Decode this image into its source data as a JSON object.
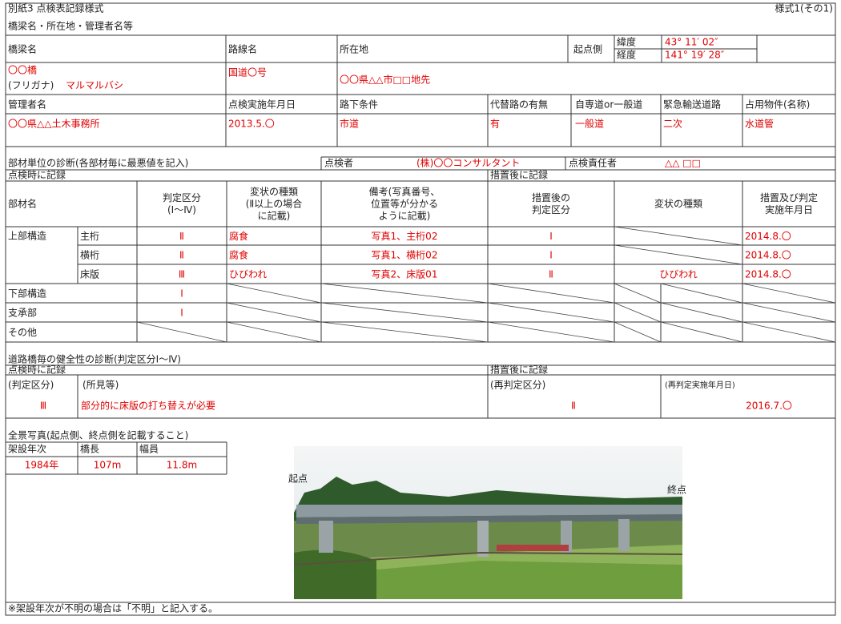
{
  "header": {
    "form_title": "別紙3 点検表記録様式",
    "form_number": "様式1(その1)"
  },
  "bridge_info": {
    "heading": "橋梁名・所在地・管理者名等",
    "labels": {
      "bridge_name": "橋梁名",
      "route": "路線名",
      "location": "所在地",
      "start_side": "起点側",
      "latitude": "緯度",
      "longitude": "経度",
      "manager": "管理者名",
      "inspection_date": "点検実施年月日",
      "under_road": "路下条件",
      "detour": "代替路の有無",
      "road_type": "自専道or一般道",
      "emergency": "緊急輸送道路",
      "occupancy": "占用物件(名称)"
    },
    "values": {
      "bridge_name": "〇〇橋",
      "furigana_label": "(フリガナ)",
      "furigana": "マルマルバシ",
      "route": "国道〇号",
      "location": "〇〇県△△市□□地先",
      "latitude": "43° 11′ 02″",
      "longitude": "141° 19′ 28″",
      "manager": "〇〇県△△土木事務所",
      "inspection_date": "2013.5.〇",
      "under_road": "市道",
      "detour": "有",
      "road_type": "一般道",
      "emergency": "二次",
      "occupancy": "水道管"
    }
  },
  "member_diagnosis": {
    "heading": "部材単位の診断(各部材毎に最悪値を記入)",
    "inspector_label": "点検者",
    "inspector": "(株)〇〇コンサルタント",
    "chief_label": "点検責任者",
    "chief": "△△ □□",
    "at_inspection": "点検時に記録",
    "after_measures": "措置後に記録",
    "columns": [
      [
        "部材名"
      ],
      [
        "判定区分",
        "(Ⅰ～Ⅳ)"
      ],
      [
        "変状の種類",
        "(Ⅱ以上の場合",
        "に記載)"
      ],
      [
        "備考(写真番号、",
        "位置等が分かる",
        "ように記載)"
      ],
      [
        "措置後の",
        "判定区分"
      ],
      [
        "変状の種類"
      ],
      [
        "措置及び判定",
        "実施年月日"
      ]
    ],
    "superstructure": {
      "group": "上部構造",
      "members": [
        {
          "member": "主桁",
          "grade": "Ⅱ",
          "defect": "腐食",
          "remarks": "写真1、主桁02",
          "grade_after": "Ⅰ",
          "date_after": "2014.8.〇"
        },
        {
          "member": "横桁",
          "grade": "Ⅱ",
          "defect": "腐食",
          "remarks": "写真1、横桁02",
          "grade_after": "Ⅰ",
          "date_after": "2014.8.〇"
        },
        {
          "member": "床版",
          "grade": "Ⅲ",
          "defect": "ひびわれ",
          "remarks": "写真2、床版01",
          "grade_after": "Ⅱ",
          "defect_after": "ひびわれ",
          "date_after": "2014.8.〇"
        }
      ]
    },
    "other_rows": [
      {
        "group": "下部構造",
        "grade": "Ⅰ"
      },
      {
        "group": "支承部",
        "grade": "Ⅰ"
      },
      {
        "group": "その他"
      }
    ]
  },
  "soundness": {
    "heading": "道路橋毎の健全性の診断(判定区分Ⅰ～Ⅳ)",
    "at_inspection": "点検時に記録",
    "after_measures": "措置後に記録",
    "grade_label": "(判定区分)",
    "findings_label": "(所見等)",
    "regrade_label": "(再判定区分)",
    "regrade_date_label": "(再判定実施年月日)",
    "grade": "Ⅲ",
    "findings": "部分的に床版の打ち替えが必要",
    "regrade": "Ⅱ",
    "regrade_date": "2016.7.〇"
  },
  "photo": {
    "heading": "全景写真(起点側、終点側を記載すること)",
    "year_label": "架設年次",
    "length_label": "橋長",
    "width_label": "幅員",
    "year": "1984年",
    "length": "107m",
    "width": "11.8m",
    "start_label": "起点",
    "end_label": "終点"
  },
  "footnote": "※架設年次が不明の場合は「不明」と記入する。"
}
